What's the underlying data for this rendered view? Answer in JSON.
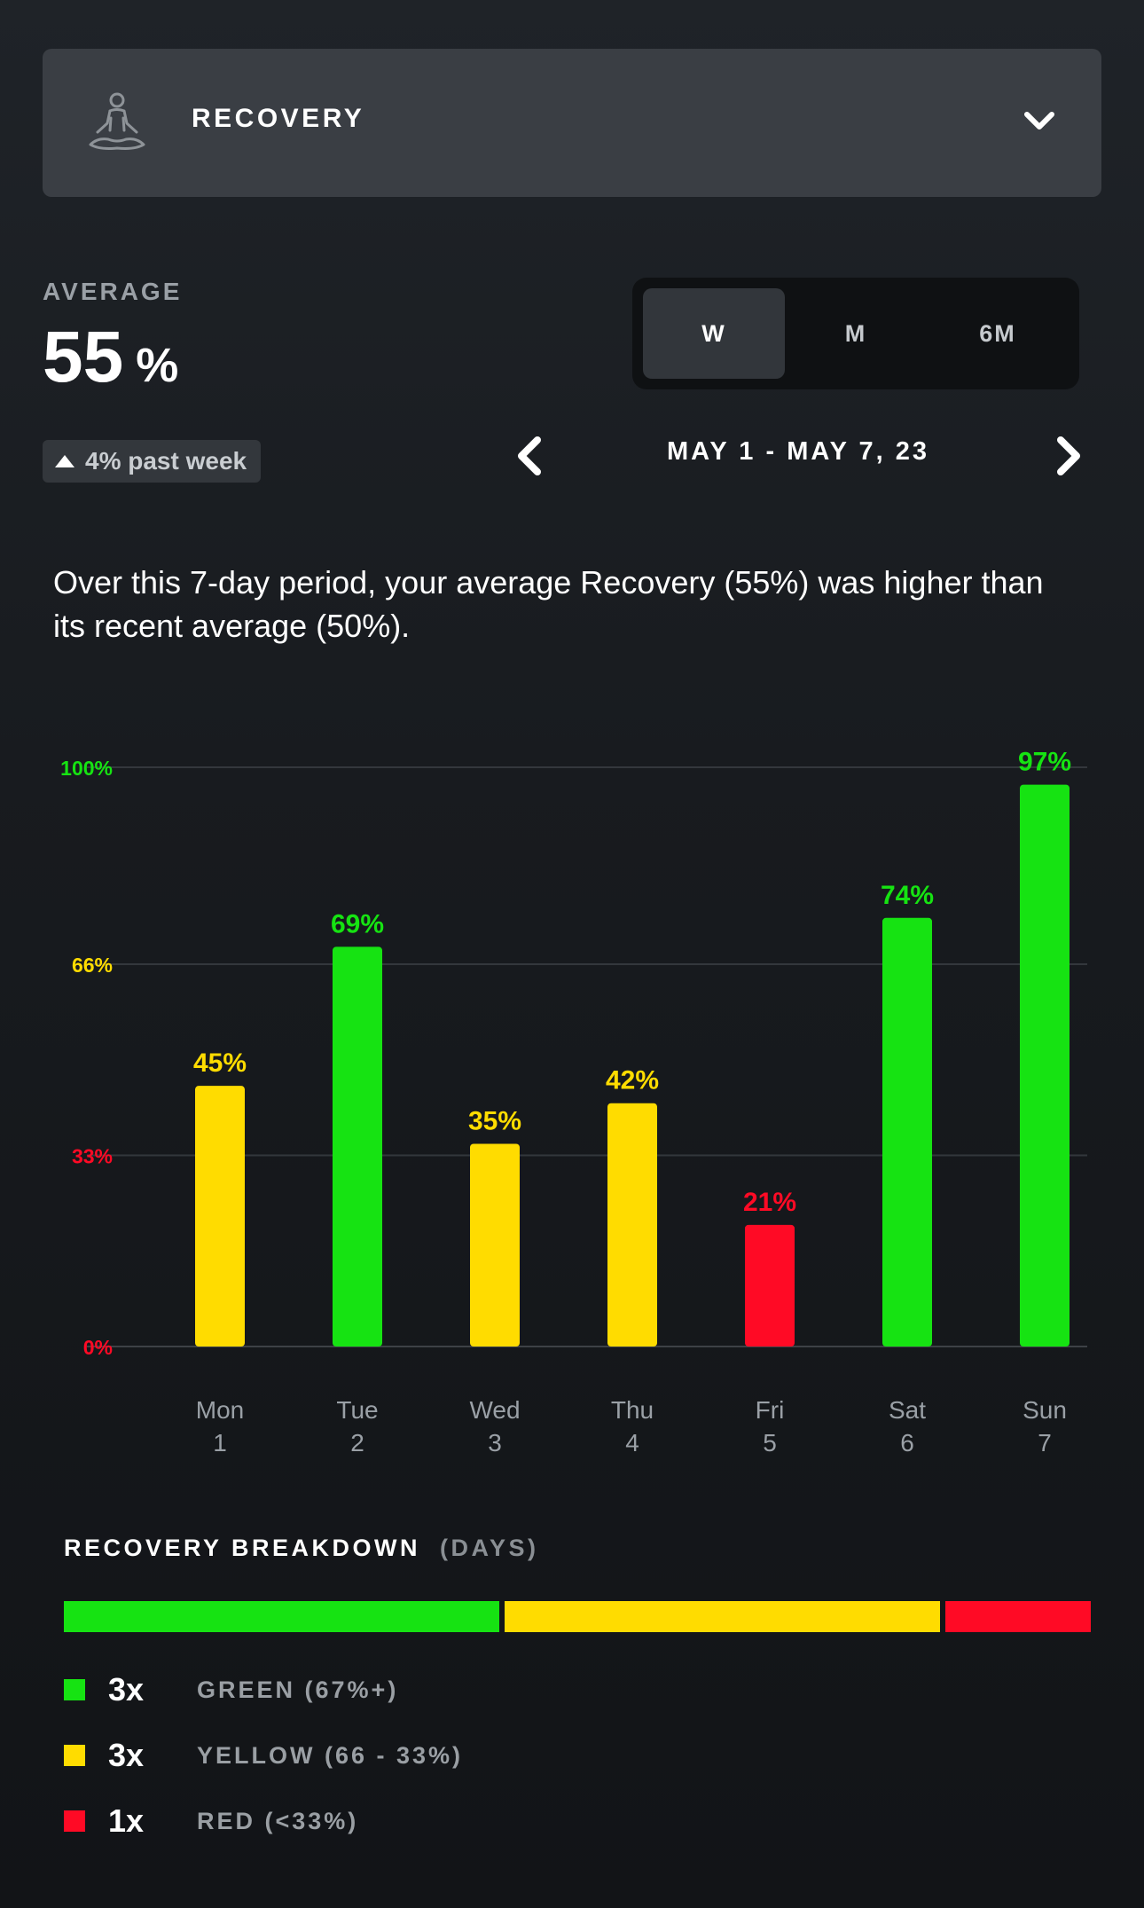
{
  "header": {
    "title": "RECOVERY",
    "icon": "meditation-icon",
    "dropdown_icon": "chevron-down-icon"
  },
  "summary": {
    "average_label": "AVERAGE",
    "average_value": "55",
    "average_unit": "%",
    "change_text": "4% past week",
    "change_icon": "triangle-up-icon"
  },
  "period_selector": {
    "options": [
      "W",
      "M",
      "6M"
    ],
    "selected": "W"
  },
  "date_nav": {
    "range": "MAY 1 - MAY 7, 23",
    "prev_icon": "chevron-left-icon",
    "next_icon": "chevron-right-icon"
  },
  "description": "Over this 7-day period, your average Recovery (55%) was higher than its recent average (50%).",
  "colors": {
    "green": "#16e312",
    "yellow": "#ffdc00",
    "red": "#ff0a25"
  },
  "chart_data": {
    "type": "bar",
    "categories": [
      "Mon 1",
      "Tue 2",
      "Wed 3",
      "Thu 4",
      "Fri 5",
      "Sat 6",
      "Sun 7"
    ],
    "day_names": [
      "Mon",
      "Tue",
      "Wed",
      "Thu",
      "Fri",
      "Sat",
      "Sun"
    ],
    "day_numbers": [
      "1",
      "2",
      "3",
      "4",
      "5",
      "6",
      "7"
    ],
    "values": [
      45,
      69,
      35,
      42,
      21,
      74,
      97
    ],
    "value_labels": [
      "45%",
      "69%",
      "35%",
      "42%",
      "21%",
      "74%",
      "97%"
    ],
    "bar_colors": [
      "yellow",
      "green",
      "yellow",
      "yellow",
      "red",
      "green",
      "green"
    ],
    "y_ticks": [
      {
        "value": 100,
        "label": "100%",
        "color": "green"
      },
      {
        "value": 66,
        "label": "66%",
        "color": "yellow"
      },
      {
        "value": 33,
        "label": "33%",
        "color": "red"
      },
      {
        "value": 0,
        "label": "0%",
        "color": "red"
      }
    ],
    "ylim": [
      0,
      100
    ],
    "grid": true
  },
  "breakdown": {
    "title": "RECOVERY BREAKDOWN",
    "subtitle": "(DAYS)",
    "segments": [
      {
        "color": "green",
        "count": 3
      },
      {
        "color": "yellow",
        "count": 3
      },
      {
        "color": "red",
        "count": 1
      }
    ],
    "legend": [
      {
        "color": "green",
        "count": "3x",
        "label": "GREEN (67%+)"
      },
      {
        "color": "yellow",
        "count": "3x",
        "label": "YELLOW (66 - 33%)"
      },
      {
        "color": "red",
        "count": "1x",
        "label": "RED (<33%)"
      }
    ]
  }
}
